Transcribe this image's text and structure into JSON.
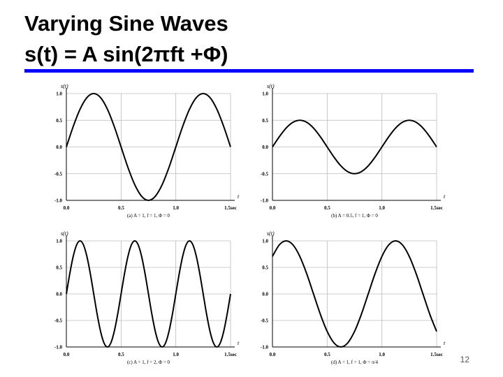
{
  "title": "Varying Sine Waves",
  "formula": "s(t) = A sin(2πft +Φ)",
  "page_number": "12",
  "chart_data": [
    {
      "type": "line",
      "caption": "(a) A = 1, f = 1, Φ = 0",
      "ylabel": "s(t)",
      "xlabel": "t",
      "color": "#000000",
      "grid": true,
      "xlim": [
        0,
        1.5
      ],
      "ylim": [
        -1,
        1
      ],
      "xticks": [
        {
          "value": 0,
          "label": "0.0"
        },
        0.5,
        {
          "value": 1,
          "label": "1.0"
        },
        {
          "value": 1.5,
          "label": "1.5sec"
        }
      ],
      "yticks": [
        {
          "value": -1,
          "label": "-1.0"
        },
        -0.5,
        {
          "value": 0,
          "label": "0.0"
        },
        0.5,
        {
          "value": 1,
          "label": "1.0"
        }
      ],
      "x": [
        0,
        0.0625,
        0.125,
        0.1875,
        0.25,
        0.3125,
        0.375,
        0.4375,
        0.5,
        0.5625,
        0.625,
        0.6875,
        0.75,
        0.8125,
        0.875,
        0.9375,
        1,
        1.0625,
        1.125,
        1.1875,
        1.25,
        1.3125,
        1.375,
        1.4375,
        1.5
      ],
      "values": [
        0,
        0.383,
        0.707,
        0.924,
        1,
        0.924,
        0.707,
        0.383,
        0,
        -0.383,
        -0.707,
        -0.924,
        -1,
        -0.924,
        -0.707,
        -0.383,
        0,
        0.383,
        0.707,
        0.924,
        1,
        0.924,
        0.707,
        0.383,
        0
      ]
    },
    {
      "type": "line",
      "caption": "(b) A = 0.5, f = 1, Φ = 0",
      "ylabel": "s(t)",
      "xlabel": "t",
      "color": "#000000",
      "grid": true,
      "xlim": [
        0,
        1.5
      ],
      "ylim": [
        -1,
        1
      ],
      "xticks": [
        {
          "value": 0,
          "label": "0.0"
        },
        0.5,
        {
          "value": 1,
          "label": "1.0"
        },
        {
          "value": 1.5,
          "label": "1.5sec"
        }
      ],
      "yticks": [
        {
          "value": -1,
          "label": "-1.0"
        },
        -0.5,
        {
          "value": 0,
          "label": "0.0"
        },
        0.5,
        {
          "value": 1,
          "label": "1.0"
        }
      ],
      "x": [
        0,
        0.0625,
        0.125,
        0.1875,
        0.25,
        0.3125,
        0.375,
        0.4375,
        0.5,
        0.5625,
        0.625,
        0.6875,
        0.75,
        0.8125,
        0.875,
        0.9375,
        1,
        1.0625,
        1.125,
        1.1875,
        1.25,
        1.3125,
        1.375,
        1.4375,
        1.5
      ],
      "values": [
        0,
        0.191,
        0.354,
        0.462,
        0.5,
        0.462,
        0.354,
        0.191,
        0,
        -0.191,
        -0.354,
        -0.462,
        -0.5,
        -0.462,
        -0.354,
        -0.191,
        0,
        0.191,
        0.354,
        0.462,
        0.5,
        0.462,
        0.354,
        0.191,
        0
      ]
    },
    {
      "type": "line",
      "caption": "(c) A = 1, f = 2, Φ = 0",
      "ylabel": "s(t)",
      "xlabel": "t",
      "color": "#000000",
      "grid": true,
      "xlim": [
        0,
        1.5
      ],
      "ylim": [
        -1,
        1
      ],
      "xticks": [
        {
          "value": 0,
          "label": "0.0"
        },
        0.5,
        {
          "value": 1,
          "label": "1.0"
        },
        {
          "value": 1.5,
          "label": "1.5sec"
        }
      ],
      "yticks": [
        {
          "value": -1,
          "label": "-1.0"
        },
        -0.5,
        {
          "value": 0,
          "label": "0.0"
        },
        0.5,
        {
          "value": 1,
          "label": "1.0"
        }
      ],
      "x": [
        0,
        0.03125,
        0.0625,
        0.09375,
        0.125,
        0.15625,
        0.1875,
        0.21875,
        0.25,
        0.28125,
        0.3125,
        0.34375,
        0.375,
        0.40625,
        0.4375,
        0.46875,
        0.5,
        0.53125,
        0.5625,
        0.59375,
        0.625,
        0.65625,
        0.6875,
        0.71875,
        0.75,
        0.78125,
        0.8125,
        0.84375,
        0.875,
        0.90625,
        0.9375,
        0.96875,
        1,
        1.03125,
        1.0625,
        1.09375,
        1.125,
        1.15625,
        1.1875,
        1.21875,
        1.25,
        1.28125,
        1.3125,
        1.34375,
        1.375,
        1.40625,
        1.4375,
        1.46875,
        1.5
      ],
      "values": [
        0,
        0.383,
        0.707,
        0.924,
        1,
        0.924,
        0.707,
        0.383,
        0,
        -0.383,
        -0.707,
        -0.924,
        -1,
        -0.924,
        -0.707,
        -0.383,
        0,
        0.383,
        0.707,
        0.924,
        1,
        0.924,
        0.707,
        0.383,
        0,
        -0.383,
        -0.707,
        -0.924,
        -1,
        -0.924,
        -0.707,
        -0.383,
        0,
        0.383,
        0.707,
        0.924,
        1,
        0.924,
        0.707,
        0.383,
        0,
        -0.383,
        -0.707,
        -0.924,
        -1,
        -0.924,
        -0.707,
        -0.383,
        0
      ]
    },
    {
      "type": "line",
      "caption": "(d) A = 1, f = 1, Φ = π/4",
      "ylabel": "s(t)",
      "xlabel": "t",
      "color": "#000000",
      "grid": true,
      "xlim": [
        0,
        1.5
      ],
      "ylim": [
        -1,
        1
      ],
      "xticks": [
        {
          "value": 0,
          "label": "0.0"
        },
        0.5,
        {
          "value": 1,
          "label": "1.0"
        },
        {
          "value": 1.5,
          "label": "1.5sec"
        }
      ],
      "yticks": [
        {
          "value": -1,
          "label": "-1.0"
        },
        -0.5,
        {
          "value": 0,
          "label": "0.0"
        },
        0.5,
        {
          "value": 1,
          "label": "1.0"
        }
      ],
      "x": [
        0,
        0.0625,
        0.125,
        0.1875,
        0.25,
        0.3125,
        0.375,
        0.4375,
        0.5,
        0.5625,
        0.625,
        0.6875,
        0.75,
        0.8125,
        0.875,
        0.9375,
        1,
        1.0625,
        1.125,
        1.1875,
        1.25,
        1.3125,
        1.375,
        1.4375,
        1.5
      ],
      "values": [
        0.707,
        0.924,
        1,
        0.924,
        0.707,
        0.383,
        0,
        -0.383,
        -0.707,
        -0.924,
        -1,
        -0.924,
        -0.707,
        -0.383,
        0,
        0.383,
        0.707,
        0.924,
        1,
        0.924,
        0.707,
        0.383,
        0,
        -0.383,
        -0.707
      ]
    }
  ]
}
